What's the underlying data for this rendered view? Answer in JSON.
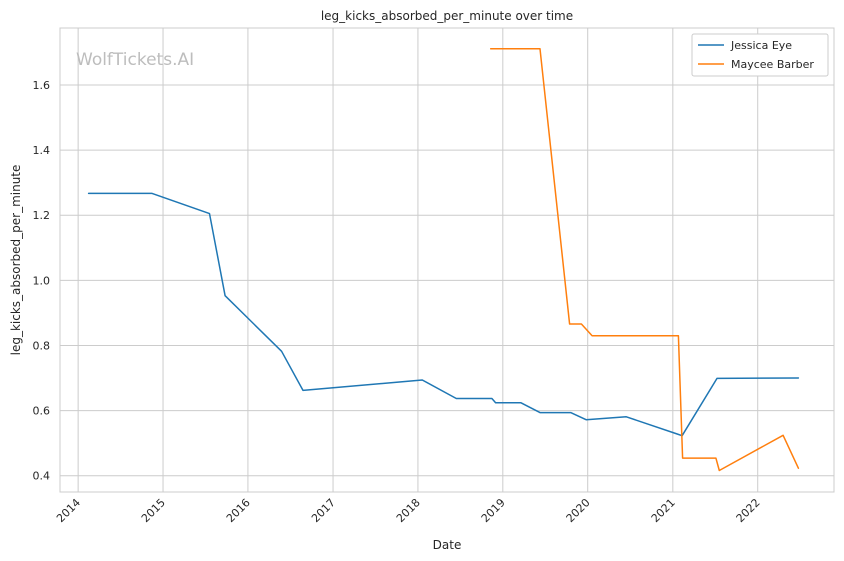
{
  "chart_data": {
    "type": "line",
    "title": "leg_kicks_absorbed_per_minute over time",
    "xlabel": "Date",
    "ylabel": "leg_kicks_absorbed_per_minute",
    "watermark": "WolfTickets.AI",
    "xlim": [
      "2013-10-15",
      "2022-11-25"
    ],
    "ylim": [
      0.35,
      1.775
    ],
    "x_ticks": [
      "2014",
      "2015",
      "2016",
      "2017",
      "2018",
      "2019",
      "2020",
      "2021",
      "2022"
    ],
    "y_ticks": [
      "0.4",
      "0.6",
      "0.8",
      "1.0",
      "1.2",
      "1.4",
      "1.6"
    ],
    "grid": true,
    "legend_position": "top-right",
    "series": [
      {
        "name": "Jessica Eye",
        "color": "#1f77b4",
        "points": [
          [
            "2014-02-15",
            1.267
          ],
          [
            "2014-11-15",
            1.267
          ],
          [
            "2015-07-20",
            1.205
          ],
          [
            "2015-09-25",
            0.953
          ],
          [
            "2016-05-25",
            0.782
          ],
          [
            "2016-08-25",
            0.662
          ],
          [
            "2018-01-20",
            0.694
          ],
          [
            "2018-06-15",
            0.637
          ],
          [
            "2018-11-15",
            0.637
          ],
          [
            "2018-12-01",
            0.624
          ],
          [
            "2019-03-20",
            0.624
          ],
          [
            "2019-06-10",
            0.594
          ],
          [
            "2019-10-20",
            0.594
          ],
          [
            "2019-12-25",
            0.572
          ],
          [
            "2020-06-15",
            0.581
          ],
          [
            "2021-01-20",
            0.528
          ],
          [
            "2021-02-10",
            0.523
          ],
          [
            "2021-07-10",
            0.699
          ],
          [
            "2022-06-25",
            0.7
          ]
        ]
      },
      {
        "name": "Maycee Barber",
        "color": "#ff7f0e",
        "points": [
          [
            "2018-11-10",
            1.711
          ],
          [
            "2019-06-10",
            1.711
          ],
          [
            "2019-10-15",
            0.866
          ],
          [
            "2019-12-05",
            0.866
          ],
          [
            "2020-01-20",
            0.83
          ],
          [
            "2021-01-25",
            0.83
          ],
          [
            "2021-02-12",
            0.454
          ],
          [
            "2021-07-05",
            0.454
          ],
          [
            "2021-07-20",
            0.416
          ],
          [
            "2022-04-20",
            0.524
          ],
          [
            "2022-06-25",
            0.423
          ]
        ]
      }
    ]
  }
}
